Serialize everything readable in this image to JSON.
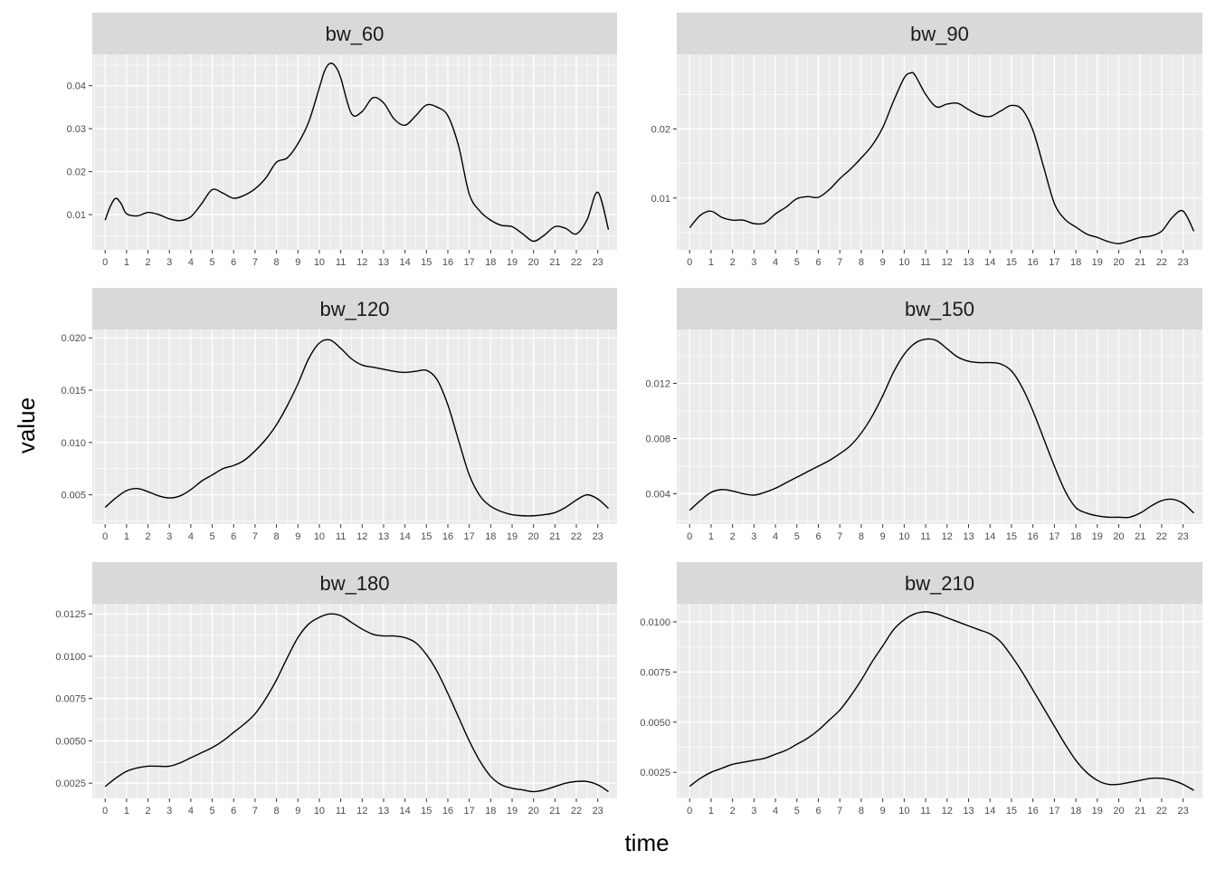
{
  "chart_data": {
    "type": "line",
    "xlabel": "time",
    "ylabel": "value",
    "x_ticks": [
      "0",
      "1",
      "2",
      "3",
      "4",
      "5",
      "6",
      "7",
      "8",
      "9",
      "10",
      "11",
      "12",
      "13",
      "14",
      "15",
      "16",
      "17",
      "18",
      "19",
      "20",
      "21",
      "22",
      "23"
    ],
    "xlim": [
      -0.6,
      23.9
    ],
    "grid": true,
    "legend": "none",
    "colors": {
      "panel_bg": "#ebebeb",
      "strip_bg": "#d9d9d9",
      "grid": "#ffffff",
      "line": "#000000"
    },
    "panels": [
      {
        "title": "bw_60",
        "ylim": [
          0.0018,
          0.0473
        ],
        "y_ticks": [
          "0.01",
          "0.02",
          "0.03",
          "0.04"
        ],
        "y_tick_values": [
          0.01,
          0.02,
          0.03,
          0.04
        ],
        "x": [
          0,
          0.25,
          0.5,
          0.75,
          1,
          1.5,
          2,
          2.5,
          3,
          3.5,
          4,
          4.5,
          5,
          5.5,
          6,
          6.5,
          7,
          7.5,
          8,
          8.5,
          9,
          9.5,
          10,
          10.25,
          10.5,
          10.75,
          11,
          11.5,
          12,
          12.5,
          13,
          13.5,
          14,
          14.5,
          15,
          15.5,
          16,
          16.5,
          17,
          17.5,
          18,
          18.5,
          19,
          19.5,
          20,
          20.5,
          21,
          21.5,
          22,
          22.5,
          23,
          23.5
        ],
        "values": [
          0.0087,
          0.012,
          0.0138,
          0.0125,
          0.0102,
          0.0097,
          0.0105,
          0.01,
          0.009,
          0.0086,
          0.0095,
          0.0125,
          0.0158,
          0.015,
          0.0138,
          0.0145,
          0.016,
          0.0185,
          0.0222,
          0.0232,
          0.0265,
          0.0315,
          0.0395,
          0.0435,
          0.0452,
          0.0445,
          0.0418,
          0.0335,
          0.034,
          0.0372,
          0.036,
          0.0322,
          0.0308,
          0.033,
          0.0355,
          0.035,
          0.033,
          0.026,
          0.0148,
          0.0108,
          0.0087,
          0.0075,
          0.0072,
          0.0055,
          0.0038,
          0.0052,
          0.0072,
          0.0068,
          0.0055,
          0.0088,
          0.0152,
          0.0065
        ]
      },
      {
        "title": "bw_90",
        "ylim": [
          0.0025,
          0.0308
        ],
        "y_ticks": [
          "0.01",
          "0.02"
        ],
        "y_tick_values": [
          0.01,
          0.02
        ],
        "x": [
          0,
          0.5,
          1,
          1.5,
          2,
          2.5,
          3,
          3.5,
          4,
          4.5,
          5,
          5.5,
          6,
          6.5,
          7,
          7.5,
          8,
          8.5,
          9,
          9.5,
          10,
          10.3,
          10.5,
          11,
          11.5,
          12,
          12.5,
          13,
          13.5,
          14,
          14.5,
          15,
          15.5,
          16,
          16.5,
          17,
          17.5,
          18,
          18.5,
          19,
          19.5,
          20,
          20.5,
          21,
          21.5,
          22,
          22.5,
          23,
          23.5
        ],
        "values": [
          0.0057,
          0.0075,
          0.0081,
          0.0072,
          0.0068,
          0.0068,
          0.0063,
          0.0064,
          0.0077,
          0.0087,
          0.0099,
          0.0102,
          0.0101,
          0.0112,
          0.0128,
          0.0142,
          0.0158,
          0.0176,
          0.0202,
          0.024,
          0.0274,
          0.0281,
          0.0278,
          0.025,
          0.0232,
          0.0236,
          0.0237,
          0.0228,
          0.022,
          0.0218,
          0.0226,
          0.0234,
          0.0228,
          0.0198,
          0.0145,
          0.0092,
          0.0069,
          0.0058,
          0.0048,
          0.0043,
          0.0037,
          0.0034,
          0.0038,
          0.0043,
          0.0045,
          0.0052,
          0.0072,
          0.0081,
          0.0052
        ]
      },
      {
        "title": "bw_120",
        "ylim": [
          0.0022,
          0.0208
        ],
        "y_ticks": [
          "0.005",
          "0.010",
          "0.015",
          "0.020"
        ],
        "y_tick_values": [
          0.005,
          0.01,
          0.015,
          0.02
        ],
        "x": [
          0,
          0.5,
          1,
          1.5,
          2,
          2.5,
          3,
          3.5,
          4,
          4.5,
          5,
          5.5,
          6,
          6.5,
          7,
          7.5,
          8,
          8.5,
          9,
          9.5,
          10,
          10.5,
          11,
          11.5,
          12,
          12.5,
          13,
          13.5,
          14,
          14.5,
          15,
          15.5,
          16,
          16.5,
          17,
          17.5,
          18,
          18.5,
          19,
          19.5,
          20,
          20.5,
          21,
          21.5,
          22,
          22.5,
          23,
          23.5
        ],
        "values": [
          0.0038,
          0.0047,
          0.0054,
          0.0056,
          0.0053,
          0.0049,
          0.0047,
          0.0049,
          0.0055,
          0.0063,
          0.0069,
          0.0075,
          0.0078,
          0.0083,
          0.0092,
          0.0103,
          0.0117,
          0.0135,
          0.0156,
          0.018,
          0.0195,
          0.0198,
          0.019,
          0.018,
          0.0174,
          0.0172,
          0.017,
          0.0168,
          0.0167,
          0.0168,
          0.0169,
          0.016,
          0.0136,
          0.0102,
          0.0069,
          0.0049,
          0.0039,
          0.0034,
          0.0031,
          0.003,
          0.003,
          0.0031,
          0.0033,
          0.0038,
          0.0045,
          0.005,
          0.0046,
          0.0037
        ]
      },
      {
        "title": "bw_150",
        "ylim": [
          0.0018,
          0.0159
        ],
        "y_ticks": [
          "0.004",
          "0.008",
          "0.012"
        ],
        "y_tick_values": [
          0.004,
          0.008,
          0.012
        ],
        "x": [
          0,
          0.5,
          1,
          1.5,
          2,
          2.5,
          3,
          3.5,
          4,
          4.5,
          5,
          5.5,
          6,
          6.5,
          7,
          7.5,
          8,
          8.5,
          9,
          9.5,
          10,
          10.5,
          11,
          11.5,
          12,
          12.5,
          13,
          13.5,
          14,
          14.5,
          15,
          15.5,
          16,
          16.5,
          17,
          17.5,
          18,
          18.5,
          19,
          19.5,
          20,
          20.5,
          21,
          21.5,
          22,
          22.5,
          23,
          23.5
        ],
        "values": [
          0.0028,
          0.0035,
          0.0041,
          0.0043,
          0.0042,
          0.004,
          0.0039,
          0.0041,
          0.0044,
          0.0048,
          0.0052,
          0.0056,
          0.006,
          0.0064,
          0.0069,
          0.0075,
          0.0084,
          0.0096,
          0.0111,
          0.0128,
          0.0141,
          0.0149,
          0.0152,
          0.0151,
          0.0145,
          0.0139,
          0.0136,
          0.0135,
          0.0135,
          0.0134,
          0.0129,
          0.0117,
          0.01,
          0.008,
          0.006,
          0.0042,
          0.003,
          0.0026,
          0.0024,
          0.0023,
          0.0023,
          0.0023,
          0.0026,
          0.0031,
          0.0035,
          0.0036,
          0.0033,
          0.0026
        ]
      },
      {
        "title": "bw_180",
        "ylim": [
          0.0016,
          0.0131
        ],
        "y_ticks": [
          "0.0025",
          "0.0050",
          "0.0075",
          "0.0100",
          "0.0125"
        ],
        "y_tick_values": [
          0.0025,
          0.005,
          0.0075,
          0.01,
          0.0125
        ],
        "x": [
          0,
          0.5,
          1,
          1.5,
          2,
          2.5,
          3,
          3.5,
          4,
          4.5,
          5,
          5.5,
          6,
          6.5,
          7,
          7.5,
          8,
          8.5,
          9,
          9.5,
          10,
          10.5,
          11,
          11.5,
          12,
          12.5,
          13,
          13.5,
          14,
          14.5,
          15,
          15.5,
          16,
          16.5,
          17,
          17.5,
          18,
          18.5,
          19,
          19.5,
          20,
          20.5,
          21,
          21.5,
          22,
          22.5,
          23,
          23.5
        ],
        "values": [
          0.0023,
          0.0028,
          0.0032,
          0.0034,
          0.0035,
          0.0035,
          0.0035,
          0.0037,
          0.004,
          0.0043,
          0.0046,
          0.005,
          0.0055,
          0.006,
          0.0066,
          0.0075,
          0.0086,
          0.0099,
          0.0111,
          0.0119,
          0.0123,
          0.0125,
          0.0124,
          0.012,
          0.0116,
          0.0113,
          0.0112,
          0.0112,
          0.0111,
          0.0108,
          0.0101,
          0.0091,
          0.0078,
          0.0064,
          0.005,
          0.0038,
          0.0029,
          0.0024,
          0.0022,
          0.0021,
          0.002,
          0.0021,
          0.0023,
          0.0025,
          0.0026,
          0.0026,
          0.0024,
          0.002
        ]
      },
      {
        "title": "bw_210",
        "ylim": [
          0.0012,
          0.0109
        ],
        "y_ticks": [
          "0.0025",
          "0.0050",
          "0.0075",
          "0.0100"
        ],
        "y_tick_values": [
          0.0025,
          0.005,
          0.0075,
          0.01
        ],
        "x": [
          0,
          0.5,
          1,
          1.5,
          2,
          2.5,
          3,
          3.5,
          4,
          4.5,
          5,
          5.5,
          6,
          6.5,
          7,
          7.5,
          8,
          8.5,
          9,
          9.5,
          10,
          10.5,
          11,
          11.5,
          12,
          12.5,
          13,
          13.5,
          14,
          14.5,
          15,
          15.5,
          16,
          16.5,
          17,
          17.5,
          18,
          18.5,
          19,
          19.5,
          20,
          20.5,
          21,
          21.5,
          22,
          22.5,
          23,
          23.5
        ],
        "values": [
          0.0018,
          0.0022,
          0.0025,
          0.0027,
          0.0029,
          0.003,
          0.0031,
          0.0032,
          0.0034,
          0.0036,
          0.0039,
          0.0042,
          0.0046,
          0.0051,
          0.0056,
          0.0063,
          0.0071,
          0.008,
          0.0088,
          0.0096,
          0.0101,
          0.0104,
          0.0105,
          0.0104,
          0.0102,
          0.01,
          0.0098,
          0.0096,
          0.0094,
          0.009,
          0.0083,
          0.0075,
          0.0066,
          0.0057,
          0.0048,
          0.0039,
          0.0031,
          0.0025,
          0.0021,
          0.0019,
          0.0019,
          0.002,
          0.0021,
          0.0022,
          0.0022,
          0.0021,
          0.0019,
          0.0016
        ]
      }
    ]
  }
}
